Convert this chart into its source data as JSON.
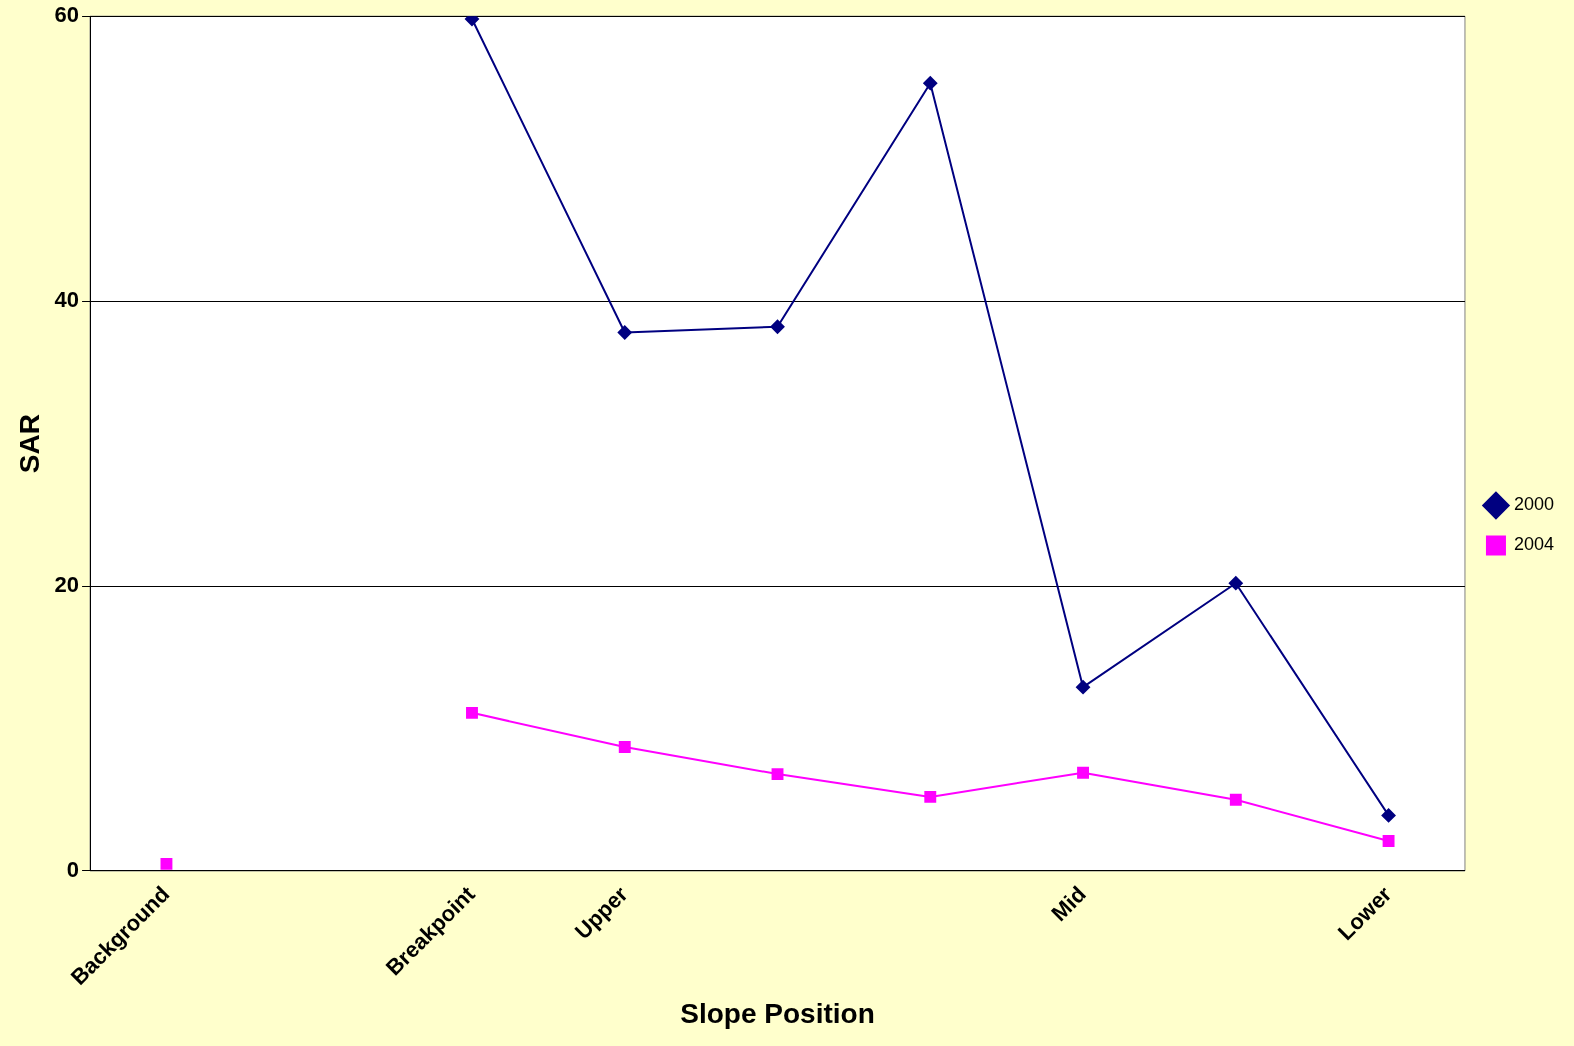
{
  "chart_data": {
    "type": "line",
    "xlabel": "Slope Position",
    "ylabel": "SAR",
    "categories": [
      "Background",
      null,
      "Breakpoint",
      "Upper",
      null,
      null,
      "Mid",
      null,
      "Lower"
    ],
    "series": [
      {
        "name": "2000",
        "color": "#000080",
        "marker": "diamond",
        "values": [
          null,
          null,
          59.8,
          37.8,
          38.2,
          55.3,
          12.9,
          20.2,
          3.9
        ]
      },
      {
        "name": "2004",
        "color": "#ff00ff",
        "marker": "square",
        "values": [
          0.5,
          null,
          11.1,
          8.7,
          6.8,
          5.2,
          6.9,
          5.0,
          2.1
        ]
      }
    ],
    "ylim": [
      0,
      60
    ],
    "yticks": [
      0,
      20,
      40,
      60
    ],
    "grid": "y",
    "legend": "right",
    "line_style": "solid"
  }
}
